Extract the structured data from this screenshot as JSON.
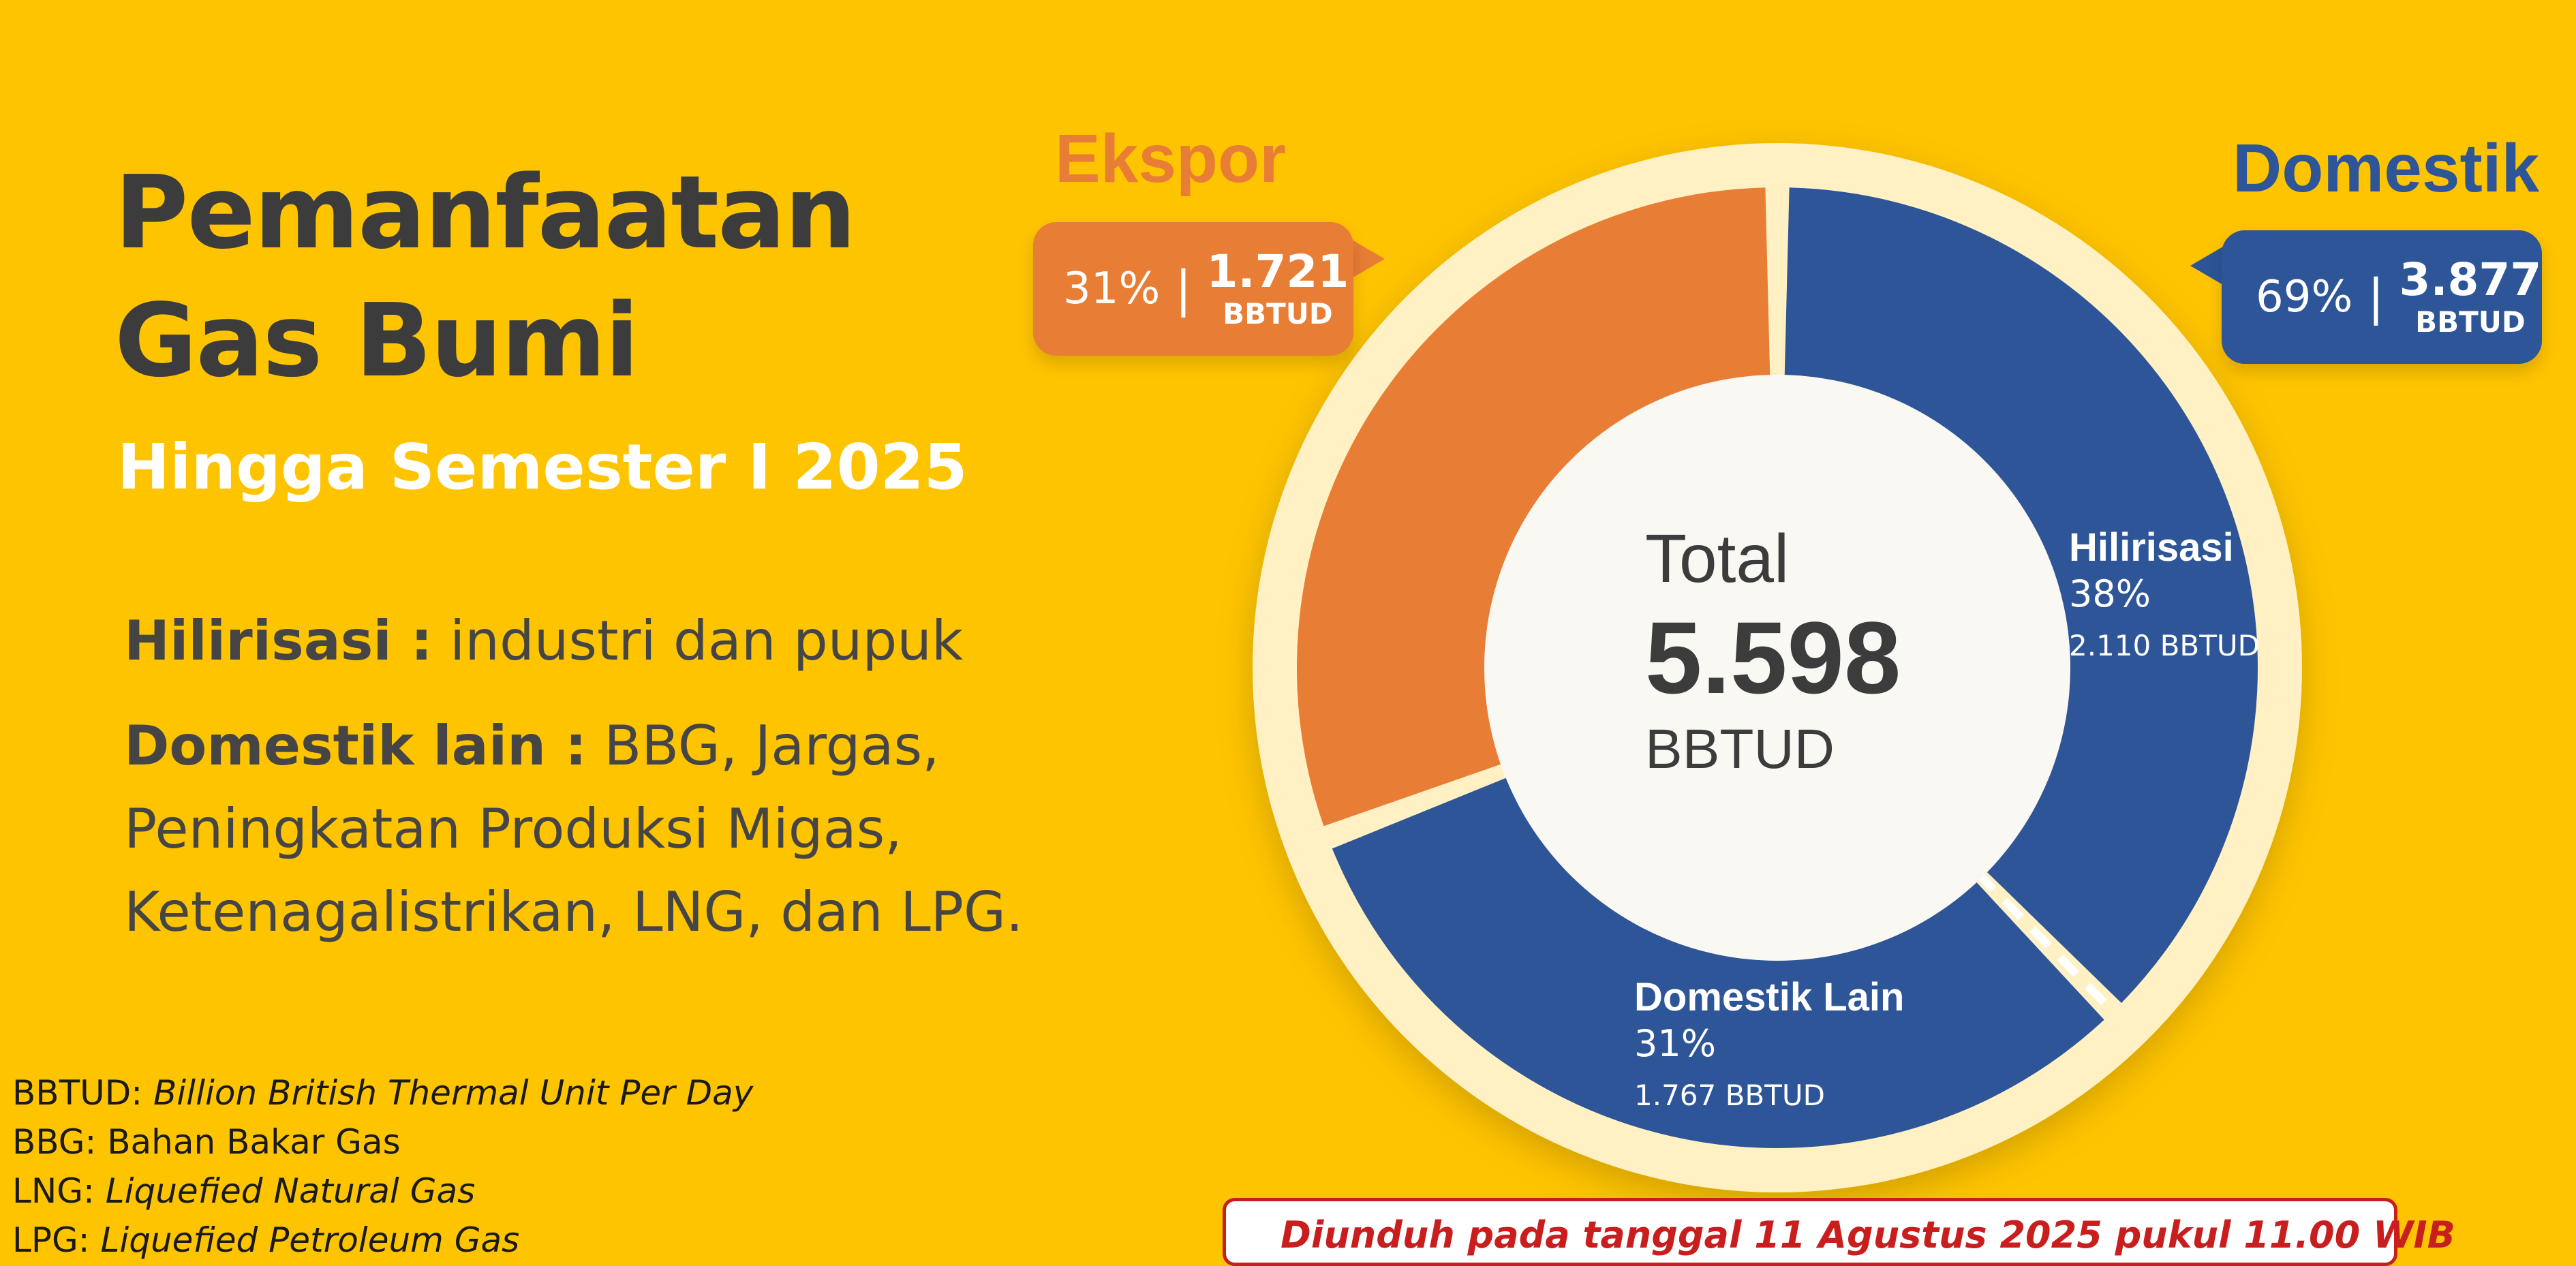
{
  "title_line1": "Pemanfaatan",
  "title_line2": "Gas Bumi",
  "subtitle": "Hingga Semester I 2025",
  "desc": {
    "hilirisasi_label": "Hilirisasi :",
    "hilirisasi_text": " industri dan pupuk",
    "domestik_lain_label": "Domestik lain :",
    "domestik_lain_text": " BBG, Jargas, Peningkatan Produksi Migas, Ketenagalistrikan, LNG, dan LPG."
  },
  "glossary": [
    {
      "term": "BBTUD:",
      "def": " Billion British Thermal Unit Per Day",
      "italic": true
    },
    {
      "term": "BBG:",
      "def": " Bahan Bakar Gas",
      "italic": false
    },
    {
      "term": "LNG:",
      "def": " Liquefied Natural Gas",
      "italic": true
    },
    {
      "term": "LPG:",
      "def": " Liquefied Petroleum Gas",
      "italic": true
    }
  ],
  "callouts": {
    "ekspor": {
      "label": "Ekspor",
      "pct": "31%",
      "sep": "|",
      "value": "1.721",
      "unit": "BBTUD"
    },
    "domestik": {
      "label": "Domestik",
      "pct": "69%",
      "sep": "|",
      "value": "3.877",
      "unit": "BBTUD"
    }
  },
  "center": {
    "label": "Total",
    "value": "5.598",
    "unit": "BBTUD"
  },
  "segment_labels": {
    "hilirisasi": {
      "name": "Hilirisasi",
      "pct": "38%",
      "value": "2.110 BBTUD"
    },
    "domestik_lain": {
      "name": "Domestik Lain",
      "pct": "31%",
      "value": "1.767 BBTUD"
    }
  },
  "note": "Diunduh pada tanggal 11 Agustus 2025 pukul 11.00 WIB",
  "colors": {
    "background": "#FFC400",
    "ekspor": "#E87D35",
    "domestik": "#2D5597",
    "ring": "#FFF1C4",
    "center": "#FAF8F3",
    "note": "#C81E1E"
  },
  "chart_data": {
    "type": "pie",
    "donut": true,
    "title": "",
    "total": 5598,
    "unit": "BBTUD",
    "series": [
      {
        "name": "Ekspor",
        "value": 1721,
        "percent": 31
      },
      {
        "name": "Hilirisasi",
        "value": 2110,
        "percent": 38
      },
      {
        "name": "Domestik Lain",
        "value": 1767,
        "percent": 31
      }
    ]
  }
}
